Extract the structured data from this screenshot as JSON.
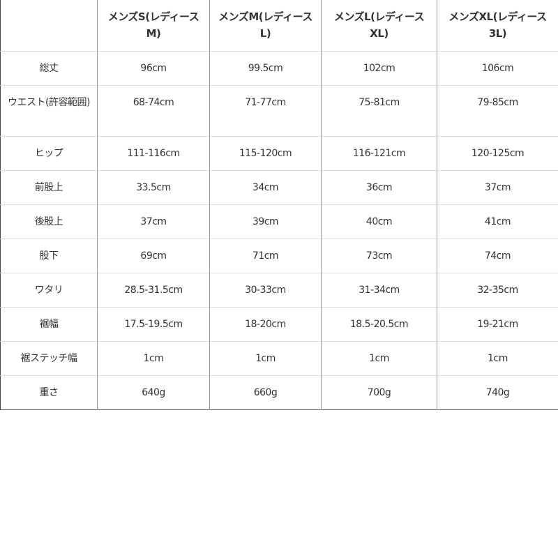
{
  "columns": [
    "",
    "メンズS(レディースM)",
    "メンズM(レディースL)",
    "メンズL(レディースXL)",
    "メンズXL(レディース3L)"
  ],
  "rows": [
    {
      "label": "総丈",
      "values": [
        "96cm",
        "99.5cm",
        "102cm",
        "106cm"
      ]
    },
    {
      "label": "ウエスト(許容範囲)",
      "values": [
        "68-74cm",
        "71-77cm",
        "75-81cm",
        "79-85cm"
      ]
    },
    {
      "label": "ヒップ",
      "values": [
        "111-116cm",
        "115-120cm",
        "116-121cm",
        "120-125cm"
      ]
    },
    {
      "label": "前股上",
      "values": [
        "33.5cm",
        "34cm",
        "36cm",
        "37cm"
      ]
    },
    {
      "label": "後股上",
      "values": [
        "37cm",
        "39cm",
        "40cm",
        "41cm"
      ]
    },
    {
      "label": "股下",
      "values": [
        "69cm",
        "71cm",
        "73cm",
        "74cm"
      ]
    },
    {
      "label": "ワタリ",
      "values": [
        "28.5-31.5cm",
        "30-33cm",
        "31-34cm",
        "32-35cm"
      ]
    },
    {
      "label": "裾幅",
      "values": [
        "17.5-19.5cm",
        "18-20cm",
        "18.5-20.5cm",
        "19-21cm"
      ]
    },
    {
      "label": "裾ステッチ幅",
      "values": [
        "1cm",
        "1cm",
        "1cm",
        "1cm"
      ]
    },
    {
      "label": "重さ",
      "values": [
        "640g",
        "660g",
        "700g",
        "740g"
      ]
    }
  ]
}
